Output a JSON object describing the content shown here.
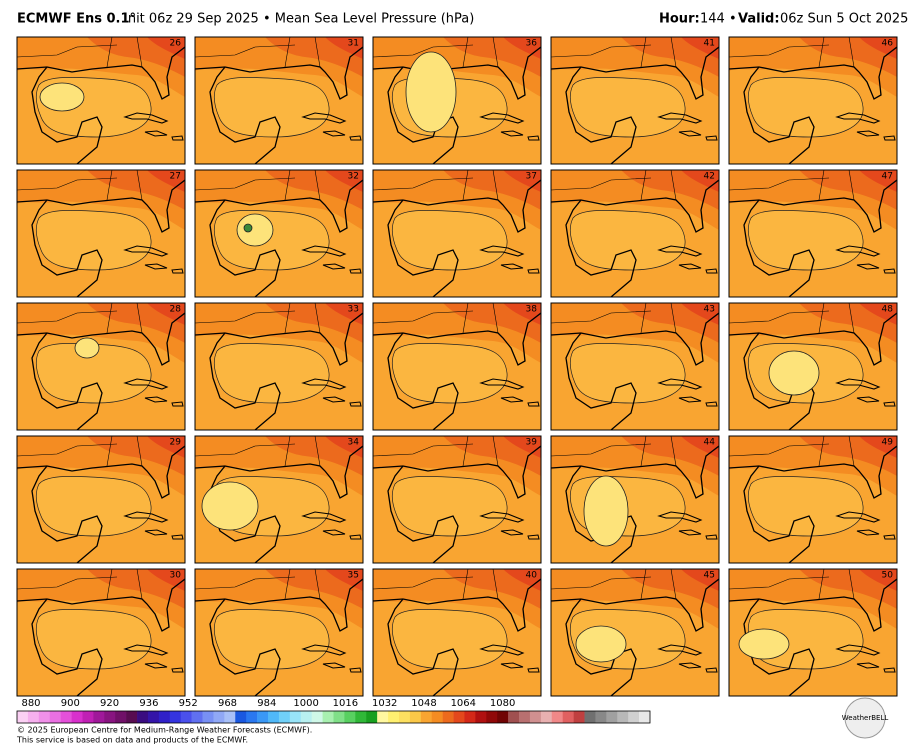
{
  "header": {
    "model": "ECMWF Ens 0.1°",
    "subtitle": "Init 06z 29 Sep 2025 • Mean Sea Level Pressure (hPa)",
    "hour_label": "Hour:",
    "hour_value": "144 •",
    "valid_label": "Valid:",
    "valid_value": "06z Sun 5 Oct 2025"
  },
  "panels": [
    26,
    31,
    36,
    41,
    46,
    27,
    32,
    37,
    42,
    47,
    28,
    33,
    38,
    43,
    48,
    29,
    34,
    39,
    44,
    49,
    30,
    35,
    40,
    45,
    50
  ],
  "colorbar": {
    "labels": [
      880,
      900,
      920,
      936,
      952,
      968,
      984,
      1000,
      1016,
      1032,
      1048,
      1064,
      1080
    ]
  },
  "footer": {
    "line1": "© 2025 European Centre for Medium-Range Weather Forecasts (ECMWF).",
    "line2": "This service is based on data and products of the ECMWF.",
    "logo": "WeatherBELL"
  }
}
